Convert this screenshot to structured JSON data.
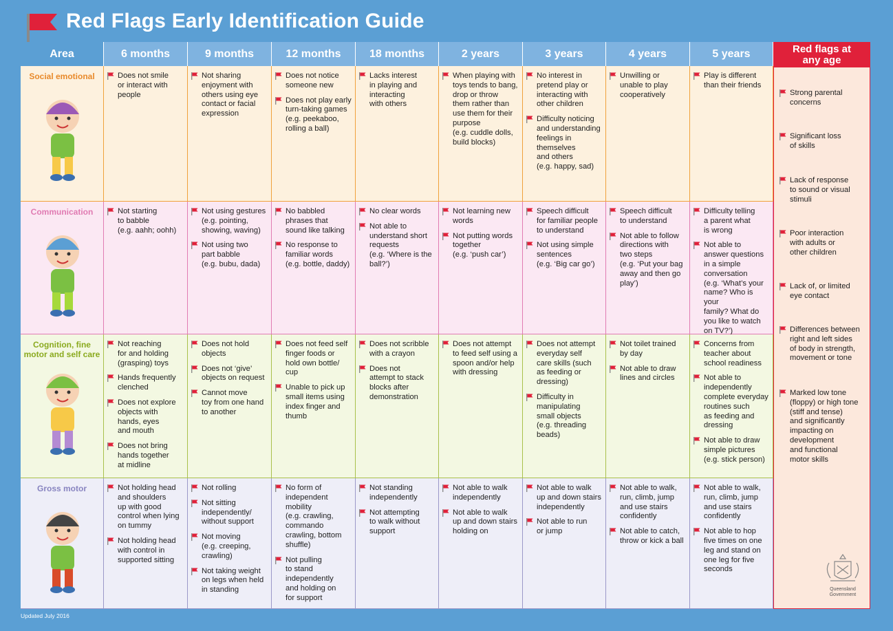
{
  "title": "Red Flags Early Identification Guide",
  "headers": [
    "Area",
    "6 months",
    "9 months",
    "12 months",
    "18 months",
    "2 years",
    "3 years",
    "4 years",
    "5 years"
  ],
  "any_age_header": "Red flags at\nany age",
  "footer": "Updated July 2016",
  "crest_text": "Queensland\nGovernment",
  "colors": {
    "flag": "#e0213a",
    "header_blue": "#7fb3e0",
    "background_blue": "#5b9fd4"
  },
  "rows": [
    {
      "area": "Social emotional",
      "cells": [
        [
          "Does not smile\nor interact with\npeople"
        ],
        [
          "Not sharing\nenjoyment with\nothers using eye\ncontact or facial\nexpression"
        ],
        [
          "Does not notice\nsomeone new",
          "Does not play early\nturn-taking games\n(e.g. peekaboo,\nrolling a ball)"
        ],
        [
          "Lacks interest\nin playing and\ninteracting\nwith others"
        ],
        [
          "When playing with\ntoys tends to bang,\ndrop or throw\nthem rather than\nuse them for their\npurpose\n(e.g. cuddle dolls,\nbuild blocks)"
        ],
        [
          "No interest in\npretend play or\ninteracting with\nother children",
          "Difficulty noticing\nand understanding\nfeelings in\nthemselves\nand others\n(e.g. happy, sad)"
        ],
        [
          "Unwilling or\nunable to play\ncooperatively"
        ],
        [
          "Play is different\nthan their friends"
        ]
      ]
    },
    {
      "area": "Communication",
      "cells": [
        [
          "Not starting\nto babble\n(e.g. aahh; oohh)"
        ],
        [
          "Not using gestures\n(e.g. pointing,\nshowing, waving)",
          "Not using two\npart babble\n(e.g. bubu, dada)"
        ],
        [
          "No babbled\nphrases that\nsound like talking",
          "No response to\nfamiliar words\n(e.g. bottle, daddy)"
        ],
        [
          "No clear words",
          "Not able to\nunderstand short\nrequests\n(e.g. ‘Where is the\nball?’)"
        ],
        [
          "Not learning new\nwords",
          "Not putting words\ntogether\n(e.g. ‘push car’)"
        ],
        [
          "Speech difficult\nfor familiar people\nto understand",
          "Not using simple\nsentences\n(e.g. ‘Big car go’)"
        ],
        [
          "Speech difficult\nto understand",
          "Not able to follow\ndirections with\ntwo steps\n(e.g. ‘Put your bag\naway and then go\nplay’)"
        ],
        [
          "Difficulty telling\na parent what\nis wrong",
          "Not able to\nanswer questions\nin a simple\nconversation\n(e.g. ‘What’s your\nname? Who is your\nfamily? What do\nyou like to watch\non TV?’)"
        ]
      ]
    },
    {
      "area": "Cognition, fine\nmotor and self care",
      "cells": [
        [
          "Not reaching\nfor and holding\n(grasping) toys",
          "Hands frequently\nclenched",
          "Does not explore\nobjects with\nhands, eyes\nand mouth",
          "Does not bring\nhands together\nat midline"
        ],
        [
          "Does not hold\nobjects",
          "Does not ‘give’\nobjects on request",
          "Cannot move\ntoy from one hand\nto another"
        ],
        [
          "Does not feed self\nfinger foods or\nhold own bottle/\ncup",
          "Unable to pick up\nsmall items using\nindex finger and\nthumb"
        ],
        [
          "Does not scribble\nwith a crayon",
          "Does not\nattempt to stack\nblocks after\ndemonstration"
        ],
        [
          "Does not attempt\nto feed self using a\nspoon and/or help\nwith dressing"
        ],
        [
          "Does not attempt\neveryday self\ncare skills (such\nas feeding or\ndressing)",
          "Difficulty in\nmanipulating\nsmall objects\n(e.g. threading\nbeads)"
        ],
        [
          "Not toilet trained\nby day",
          "Not able to draw\nlines and circles"
        ],
        [
          "Concerns from\nteacher about\nschool readiness",
          "Not able to\nindependently\ncomplete everyday\nroutines such\nas feeding and\ndressing",
          "Not able to draw\nsimple pictures\n(e.g. stick person)"
        ]
      ]
    },
    {
      "area": "Gross motor",
      "cells": [
        [
          "Not holding head\nand shoulders\nup with good\ncontrol when lying\non tummy",
          "Not holding head\nwith control in\nsupported sitting"
        ],
        [
          "Not rolling",
          "Not sitting\nindependently/\nwithout support",
          "Not moving\n(e.g. creeping,\ncrawling)",
          "Not taking weight\non legs when held\nin standing"
        ],
        [
          "No form of\nindependent\nmobility\n(e.g. crawling,\ncommando\ncrawling, bottom\nshuffle)",
          "Not pulling\nto stand\nindependently\nand holding on\nfor support"
        ],
        [
          "Not standing\nindependently",
          "Not attempting\nto walk without\nsupport"
        ],
        [
          "Not able to walk\nindependently",
          "Not able to walk\nup and down stairs\nholding on"
        ],
        [
          "Not able to walk\nup and down stairs\nindependently",
          "Not able to run\nor jump"
        ],
        [
          "Not able to walk,\nrun, climb, jump\nand use stairs\nconfidently",
          "Not able to catch,\nthrow or kick a ball"
        ],
        [
          "Not able to walk,\nrun, climb, jump\nand use stairs\nconfidently",
          "Not able to hop\nfive times on one\nleg and stand on\none leg for five\nseconds"
        ]
      ]
    }
  ],
  "any_age": [
    "Strong parental\nconcerns",
    "Significant loss\nof skills",
    "Lack of response\nto sound or visual\nstimuli",
    "Poor interaction\nwith adults or\nother children",
    "Lack of, or limited\neye contact",
    "Differences between\nright and left sides\nof body in strength,\nmovement or tone",
    "Marked low tone\n(floppy) or high tone\n(stiff and tense)\nand significantly\nimpacting on\ndevelopment\nand functional\nmotor skills"
  ]
}
